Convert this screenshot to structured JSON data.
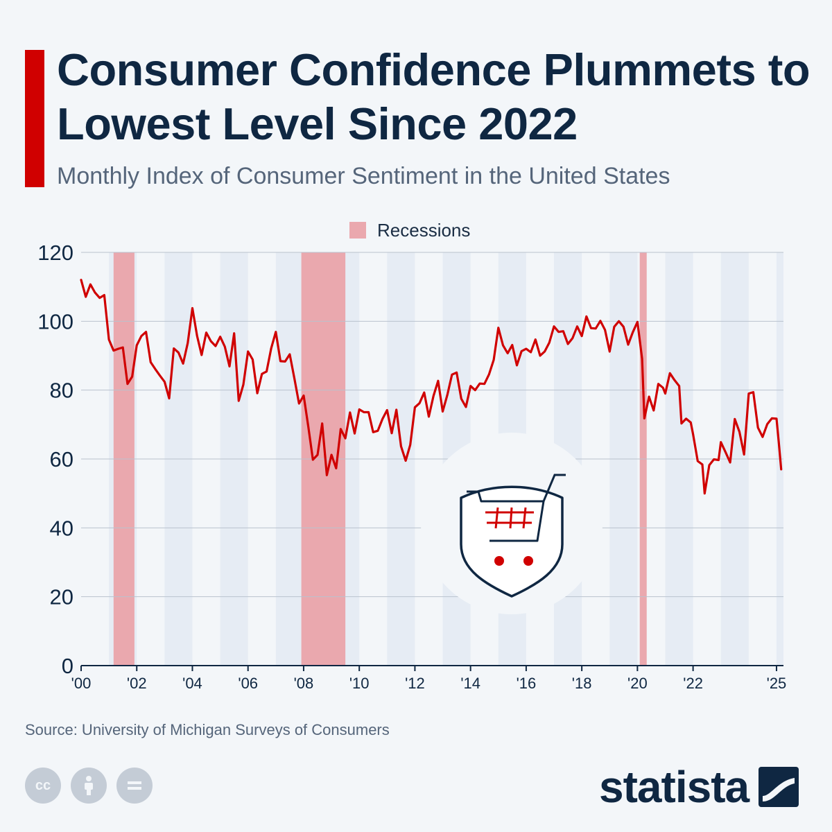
{
  "header": {
    "title": "Consumer Confidence Plummets to Lowest Level Since 2022",
    "subtitle": "Monthly Index of Consumer Sentiment in the United States"
  },
  "legend": {
    "recessions_label": "Recessions"
  },
  "footer": {
    "source": "Source: University of Michigan Surveys of Consumers",
    "brand": "statista",
    "license_icons": [
      "cc-icon",
      "attribution-icon",
      "no-derivatives-icon"
    ]
  },
  "colors": {
    "accent": "#d00000",
    "title": "#0f2742",
    "line": "#d00000",
    "recession_band": "#eaa8ae",
    "alternate_year_band": "#e6ecf4"
  },
  "icon": "shopping-cart-shield-icon",
  "chart_data": {
    "type": "line",
    "x_range": [
      "2000-01",
      "2025-04"
    ],
    "ylim": [
      0,
      120
    ],
    "y_ticks": [
      0,
      20,
      40,
      60,
      80,
      100,
      120
    ],
    "x_ticks": [
      "'00",
      "'02",
      "'04",
      "'06",
      "'08",
      "'10",
      "'12",
      "'14",
      "'16",
      "'18",
      "'20",
      "'22",
      "'25"
    ],
    "x_tick_years": [
      2000,
      2002,
      2004,
      2006,
      2008,
      2010,
      2012,
      2014,
      2016,
      2018,
      2020,
      2022,
      2025
    ],
    "grid": true,
    "legend_position": "top-center",
    "recessions": [
      {
        "start": "2001-03",
        "end": "2001-11"
      },
      {
        "start": "2007-12",
        "end": "2009-06"
      },
      {
        "start": "2020-02",
        "end": "2020-04"
      }
    ],
    "series": [
      {
        "points": [
          [
            "2000-01",
            112.0
          ],
          [
            "2000-03",
            107.1
          ],
          [
            "2000-05",
            110.7
          ],
          [
            "2000-07",
            108.3
          ],
          [
            "2000-09",
            106.8
          ],
          [
            "2000-11",
            107.6
          ],
          [
            "2001-01",
            94.7
          ],
          [
            "2001-03",
            91.5
          ],
          [
            "2001-05",
            92.0
          ],
          [
            "2001-07",
            92.4
          ],
          [
            "2001-09",
            81.8
          ],
          [
            "2001-11",
            83.9
          ],
          [
            "2002-01",
            93.0
          ],
          [
            "2002-03",
            95.7
          ],
          [
            "2002-05",
            96.9
          ],
          [
            "2002-07",
            88.1
          ],
          [
            "2002-09",
            86.1
          ],
          [
            "2002-11",
            84.2
          ],
          [
            "2003-01",
            82.4
          ],
          [
            "2003-03",
            77.6
          ],
          [
            "2003-05",
            92.1
          ],
          [
            "2003-07",
            90.9
          ],
          [
            "2003-09",
            87.7
          ],
          [
            "2003-11",
            93.7
          ],
          [
            "2004-01",
            103.8
          ],
          [
            "2004-03",
            95.8
          ],
          [
            "2004-05",
            90.2
          ],
          [
            "2004-07",
            96.7
          ],
          [
            "2004-09",
            94.2
          ],
          [
            "2004-11",
            92.8
          ],
          [
            "2005-01",
            95.5
          ],
          [
            "2005-03",
            92.6
          ],
          [
            "2005-05",
            86.9
          ],
          [
            "2005-07",
            96.5
          ],
          [
            "2005-09",
            76.9
          ],
          [
            "2005-11",
            81.6
          ],
          [
            "2006-01",
            91.2
          ],
          [
            "2006-03",
            88.9
          ],
          [
            "2006-05",
            79.1
          ],
          [
            "2006-07",
            84.7
          ],
          [
            "2006-09",
            85.4
          ],
          [
            "2006-11",
            92.1
          ],
          [
            "2007-01",
            96.9
          ],
          [
            "2007-03",
            88.4
          ],
          [
            "2007-05",
            88.3
          ],
          [
            "2007-07",
            90.4
          ],
          [
            "2007-09",
            83.4
          ],
          [
            "2007-11",
            76.1
          ],
          [
            "2008-01",
            78.4
          ],
          [
            "2008-03",
            69.5
          ],
          [
            "2008-05",
            59.8
          ],
          [
            "2008-07",
            61.2
          ],
          [
            "2008-09",
            70.3
          ],
          [
            "2008-11",
            55.3
          ],
          [
            "2009-01",
            61.2
          ],
          [
            "2009-03",
            57.3
          ],
          [
            "2009-05",
            68.7
          ],
          [
            "2009-07",
            66.0
          ],
          [
            "2009-09",
            73.5
          ],
          [
            "2009-11",
            67.4
          ],
          [
            "2010-01",
            74.4
          ],
          [
            "2010-03",
            73.6
          ],
          [
            "2010-05",
            73.6
          ],
          [
            "2010-07",
            67.8
          ],
          [
            "2010-09",
            68.2
          ],
          [
            "2010-11",
            71.6
          ],
          [
            "2011-01",
            74.2
          ],
          [
            "2011-03",
            67.5
          ],
          [
            "2011-05",
            74.3
          ],
          [
            "2011-07",
            63.7
          ],
          [
            "2011-09",
            59.5
          ],
          [
            "2011-11",
            64.1
          ],
          [
            "2012-01",
            75.0
          ],
          [
            "2012-03",
            76.2
          ],
          [
            "2012-05",
            79.3
          ],
          [
            "2012-07",
            72.3
          ],
          [
            "2012-09",
            78.3
          ],
          [
            "2012-11",
            82.7
          ],
          [
            "2013-01",
            73.8
          ],
          [
            "2013-03",
            78.6
          ],
          [
            "2013-05",
            84.5
          ],
          [
            "2013-07",
            85.1
          ],
          [
            "2013-09",
            77.5
          ],
          [
            "2013-11",
            75.1
          ],
          [
            "2014-01",
            81.2
          ],
          [
            "2014-03",
            80.0
          ],
          [
            "2014-05",
            81.9
          ],
          [
            "2014-07",
            81.8
          ],
          [
            "2014-09",
            84.6
          ],
          [
            "2014-11",
            88.8
          ],
          [
            "2015-01",
            98.1
          ],
          [
            "2015-03",
            93.0
          ],
          [
            "2015-05",
            90.7
          ],
          [
            "2015-07",
            93.1
          ],
          [
            "2015-09",
            87.2
          ],
          [
            "2015-11",
            91.3
          ],
          [
            "2016-01",
            92.0
          ],
          [
            "2016-03",
            91.0
          ],
          [
            "2016-05",
            94.7
          ],
          [
            "2016-07",
            90.0
          ],
          [
            "2016-09",
            91.2
          ],
          [
            "2016-11",
            93.8
          ],
          [
            "2017-01",
            98.5
          ],
          [
            "2017-03",
            96.9
          ],
          [
            "2017-05",
            97.1
          ],
          [
            "2017-07",
            93.4
          ],
          [
            "2017-09",
            95.1
          ],
          [
            "2017-11",
            98.5
          ],
          [
            "2018-01",
            95.7
          ],
          [
            "2018-03",
            101.4
          ],
          [
            "2018-05",
            98.0
          ],
          [
            "2018-07",
            97.9
          ],
          [
            "2018-09",
            100.1
          ],
          [
            "2018-11",
            97.5
          ],
          [
            "2019-01",
            91.2
          ],
          [
            "2019-03",
            98.4
          ],
          [
            "2019-05",
            100.0
          ],
          [
            "2019-07",
            98.4
          ],
          [
            "2019-09",
            93.2
          ],
          [
            "2019-11",
            96.8
          ],
          [
            "2020-01",
            99.8
          ],
          [
            "2020-03",
            89.1
          ],
          [
            "2020-04",
            71.8
          ],
          [
            "2020-06",
            78.1
          ],
          [
            "2020-08",
            74.1
          ],
          [
            "2020-10",
            81.8
          ],
          [
            "2020-12",
            80.7
          ],
          [
            "2021-01",
            79.0
          ],
          [
            "2021-03",
            84.9
          ],
          [
            "2021-05",
            82.9
          ],
          [
            "2021-07",
            81.2
          ],
          [
            "2021-08",
            70.3
          ],
          [
            "2021-10",
            71.7
          ],
          [
            "2021-12",
            70.6
          ],
          [
            "2022-01",
            67.2
          ],
          [
            "2022-03",
            59.4
          ],
          [
            "2022-05",
            58.4
          ],
          [
            "2022-06",
            50.0
          ],
          [
            "2022-08",
            58.2
          ],
          [
            "2022-10",
            59.9
          ],
          [
            "2022-12",
            59.7
          ],
          [
            "2023-01",
            64.9
          ],
          [
            "2023-03",
            62.0
          ],
          [
            "2023-05",
            59.0
          ],
          [
            "2023-07",
            71.6
          ],
          [
            "2023-09",
            67.9
          ],
          [
            "2023-11",
            61.3
          ],
          [
            "2024-01",
            79.0
          ],
          [
            "2024-03",
            79.4
          ],
          [
            "2024-05",
            69.1
          ],
          [
            "2024-07",
            66.4
          ],
          [
            "2024-09",
            70.1
          ],
          [
            "2024-11",
            71.8
          ],
          [
            "2025-01",
            71.7
          ],
          [
            "2025-02",
            64.7
          ],
          [
            "2025-03",
            57.0
          ]
        ]
      }
    ]
  }
}
